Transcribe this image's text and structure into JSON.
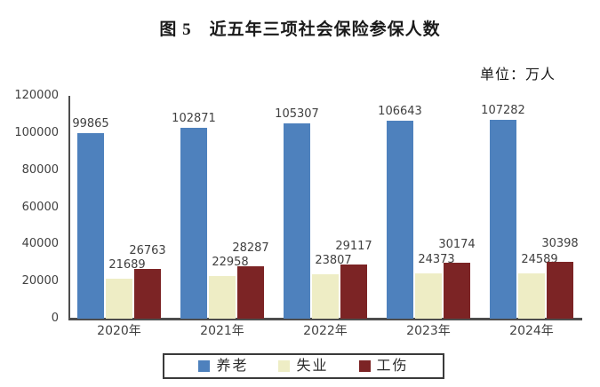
{
  "header": {
    "title": "图 5　近五年三项社会保险参保人数",
    "unit_label": "单位：万人"
  },
  "chart_data": {
    "type": "bar",
    "title": "图 5　近五年三项社会保险参保人数",
    "unit": "万人",
    "categories": [
      "2020年",
      "2021年",
      "2022年",
      "2023年",
      "2024年"
    ],
    "series": [
      {
        "name": "养老",
        "color": "#4E81BD",
        "values": [
          99865,
          102871,
          105307,
          106643,
          107282
        ]
      },
      {
        "name": "失业",
        "color": "#EEEDC5",
        "values": [
          21689,
          22958,
          23807,
          24373,
          24589
        ]
      },
      {
        "name": "工伤",
        "color": "#7C2425",
        "values": [
          26763,
          28287,
          29117,
          30174,
          30398
        ]
      }
    ],
    "ylim": [
      0,
      120000
    ],
    "ytick_step": 20000,
    "yticks": [
      0,
      20000,
      40000,
      60000,
      80000,
      100000,
      120000
    ],
    "grid": false,
    "value_labels": true,
    "legend_position": "bottom",
    "axis_color": "#4d4d4d"
  }
}
